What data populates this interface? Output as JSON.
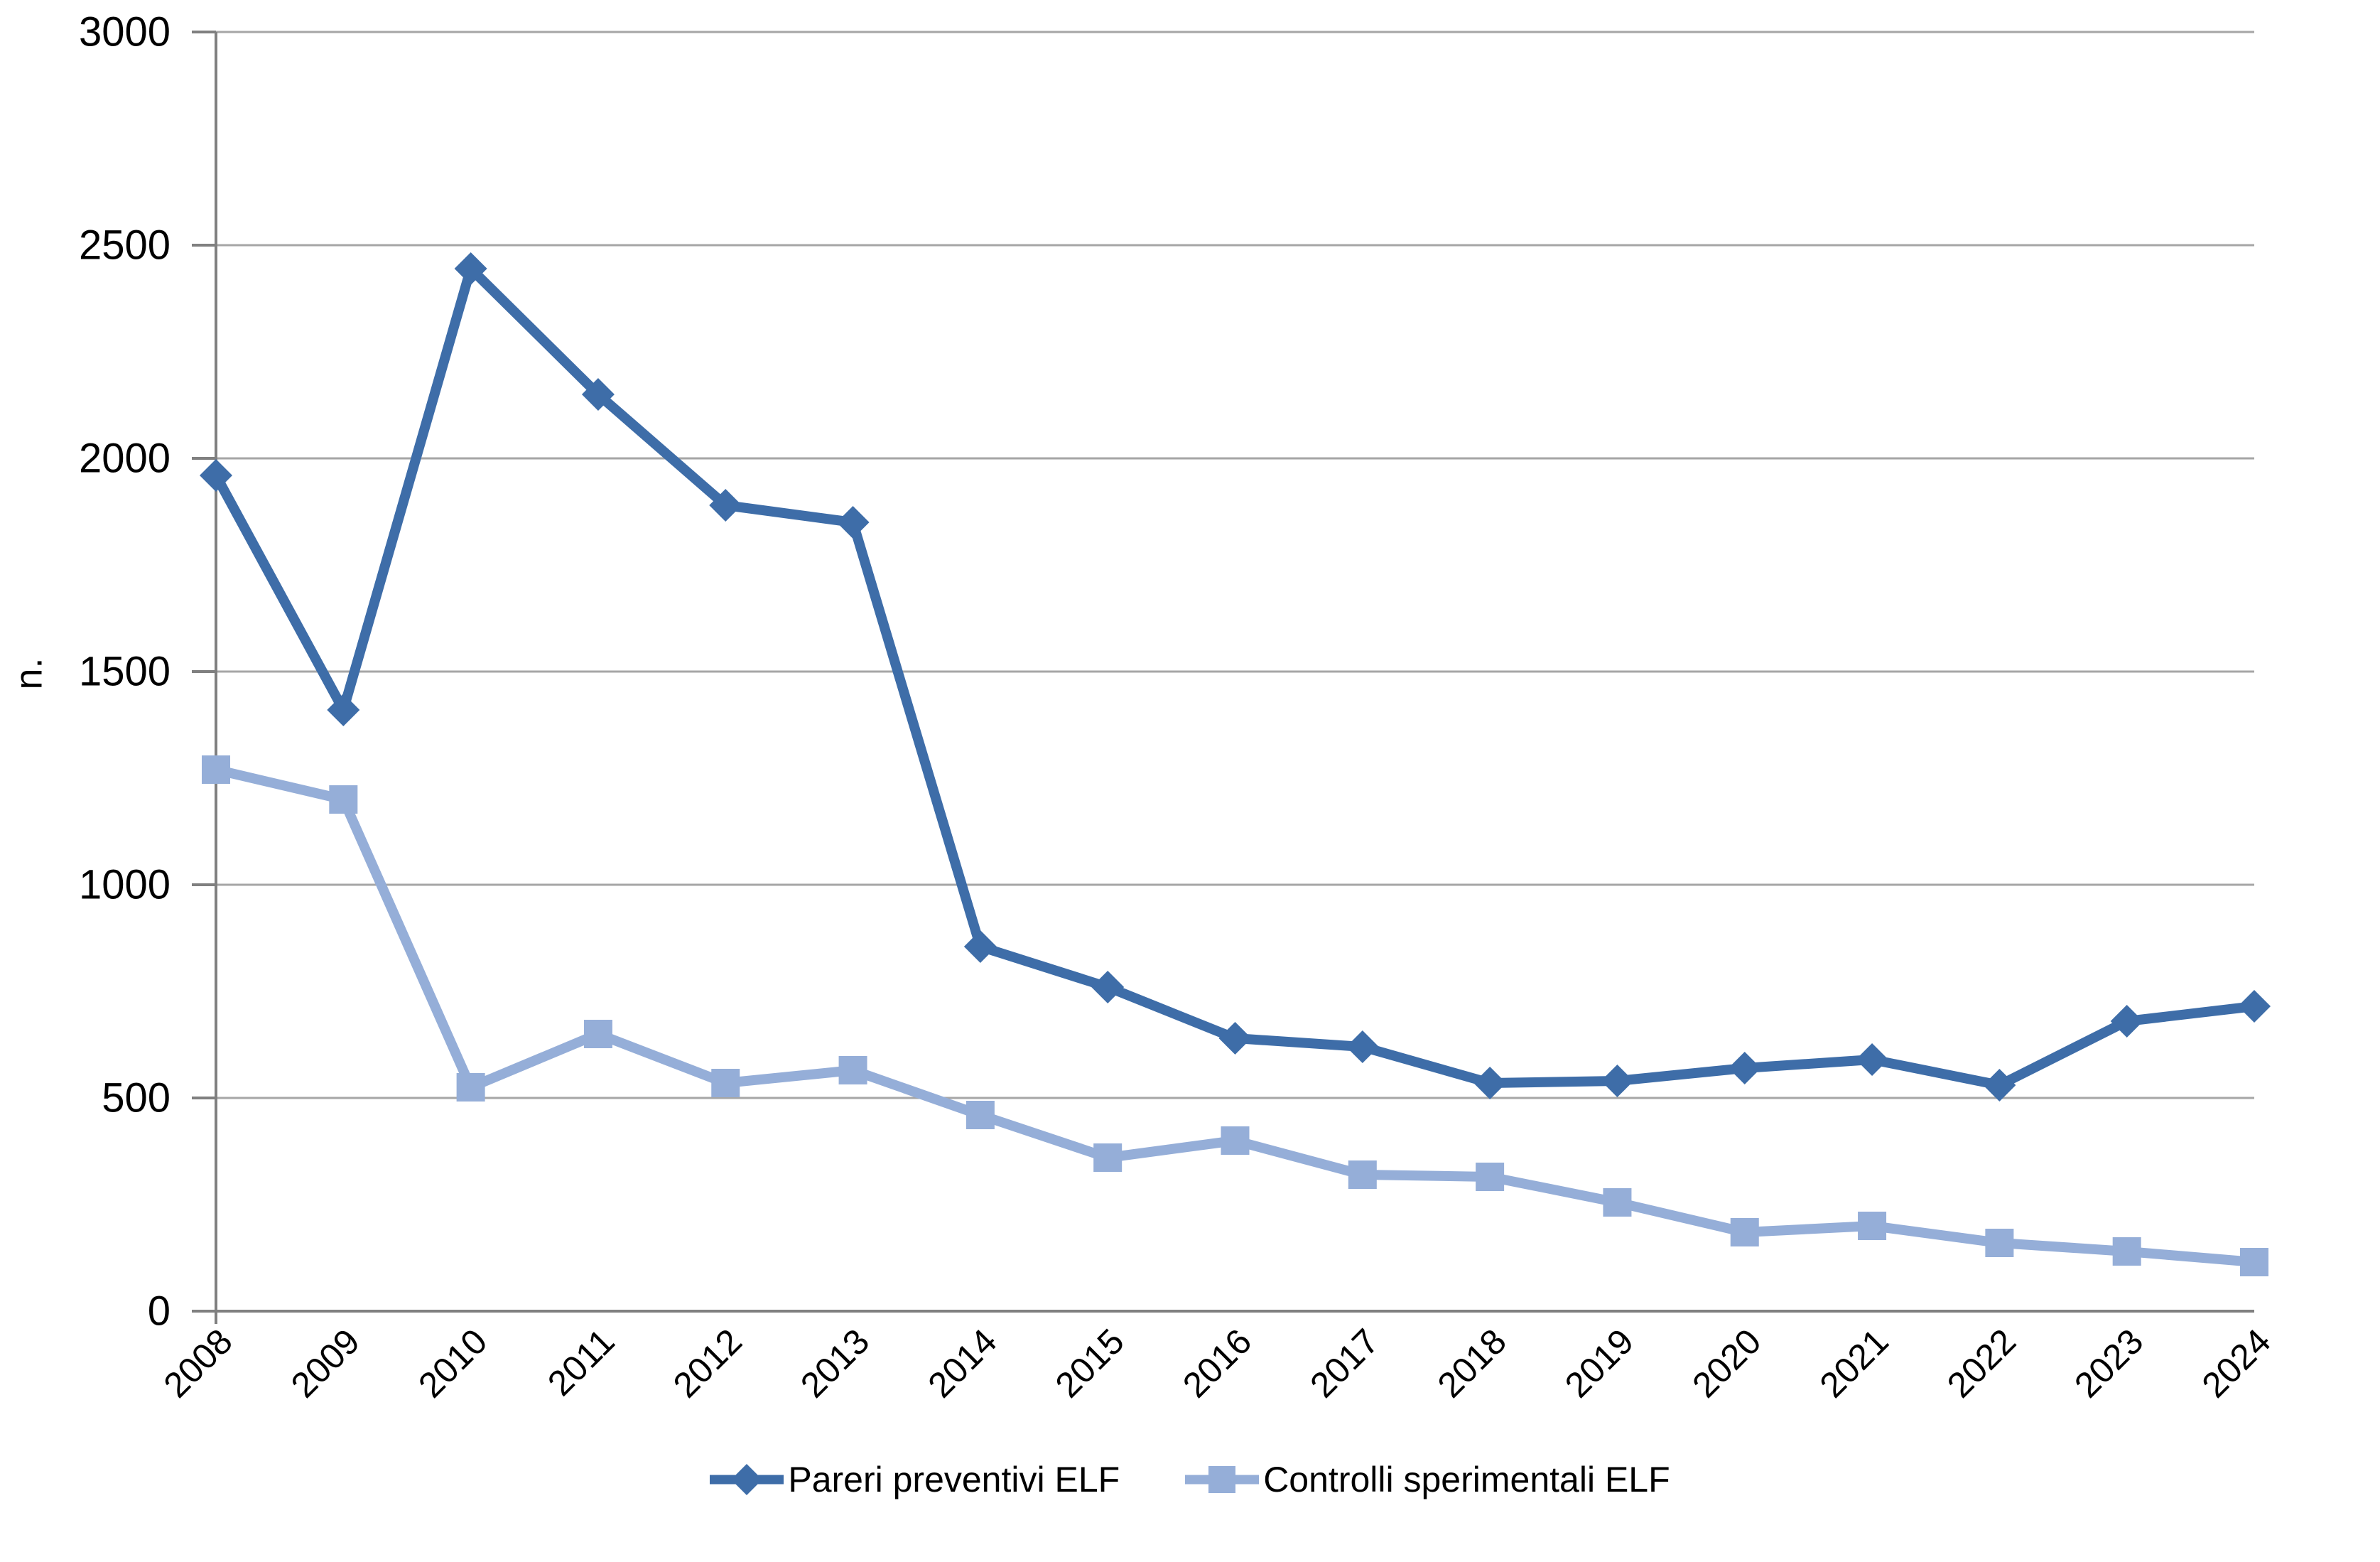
{
  "chart_data": {
    "type": "line",
    "title": "",
    "xlabel": "",
    "ylabel": "n.",
    "ylim": [
      0,
      3000
    ],
    "ytick_step": 500,
    "yticks": [
      0,
      500,
      1000,
      1500,
      2000,
      2500,
      3000
    ],
    "grid": "horizontal",
    "legend_position": "bottom-center",
    "categories": [
      "2008",
      "2009",
      "2010",
      "2011",
      "2012",
      "2013",
      "2014",
      "2015",
      "2016",
      "2017",
      "2018",
      "2019",
      "2020",
      "2021",
      "2022",
      "2023",
      "2024"
    ],
    "series": [
      {
        "name": "Pareri preventivi ELF",
        "marker": "diamond",
        "color": "#3E6DA8",
        "values": [
          1960,
          1410,
          2445,
          2150,
          1890,
          1850,
          855,
          760,
          640,
          620,
          535,
          540,
          570,
          590,
          530,
          680,
          715
        ]
      },
      {
        "name": "Controlli sperimentali ELF",
        "marker": "square",
        "color": "#95AED8",
        "values": [
          1270,
          1200,
          525,
          650,
          535,
          565,
          460,
          360,
          400,
          320,
          315,
          255,
          185,
          200,
          160,
          140,
          115
        ]
      }
    ]
  },
  "colors": {
    "background": "#FFFFFF",
    "gridline": "#A6A6A6",
    "axis": "#808080",
    "text": "#000000"
  }
}
